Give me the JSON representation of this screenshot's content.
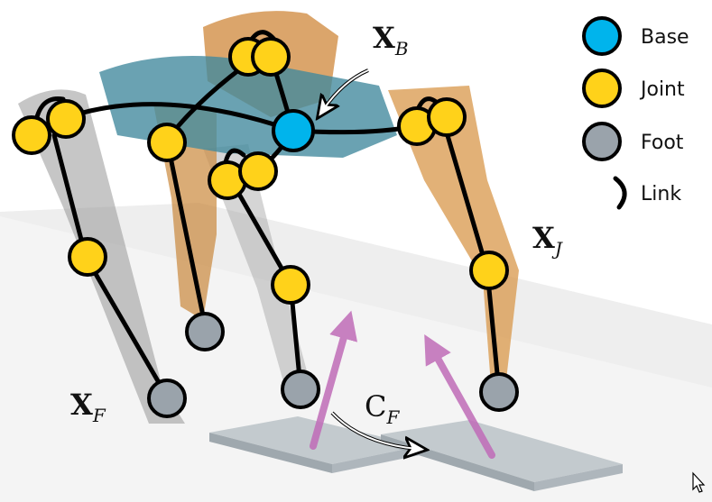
{
  "legend": {
    "items": [
      {
        "key": "base",
        "label": "Base",
        "icon": "base-marker-icon",
        "color": "#00b4ec"
      },
      {
        "key": "joint",
        "label": "Joint",
        "icon": "joint-marker-icon",
        "color": "#ffd21a"
      },
      {
        "key": "foot",
        "label": "Foot",
        "icon": "foot-marker-icon",
        "color": "#9aa3ab"
      },
      {
        "key": "link",
        "label": "Link",
        "icon": "link-arc-icon",
        "color": "#000000"
      }
    ]
  },
  "labels": {
    "x_b": {
      "main": "X",
      "sub": "B"
    },
    "x_j": {
      "main": "X",
      "sub": "J"
    },
    "x_f": {
      "main": "X",
      "sub": "F"
    },
    "c_f": {
      "main": "C",
      "sub": "F"
    }
  },
  "colors": {
    "base_fill": "#00b4ec",
    "joint_fill": "#ffd21a",
    "foot_fill": "#9aa3ab",
    "link_stroke": "#000000",
    "contact_force_arrow": "#c06cb8",
    "robot_body_teal": "#2f7e93",
    "robot_leg_orange": "#d99a4e",
    "robot_leg_gray": "#8c8c8c",
    "ground": "#ececec",
    "contact_pad": "#b9c1c7"
  }
}
